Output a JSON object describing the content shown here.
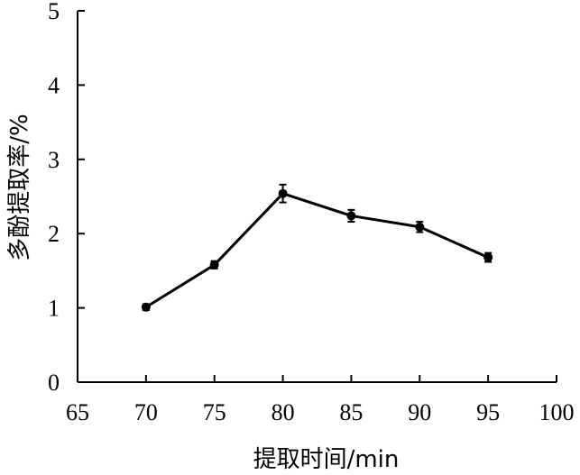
{
  "chart_data": {
    "type": "line",
    "title": "",
    "xlabel": "提取时间/min",
    "ylabel": "多酚提取率/%",
    "xlim": [
      65,
      100
    ],
    "ylim": [
      0,
      5
    ],
    "xticks": [
      "65",
      "70",
      "75",
      "80",
      "85",
      "90",
      "95",
      "100"
    ],
    "yticks": [
      "0",
      "1",
      "2",
      "3",
      "4",
      "5"
    ],
    "grid": false,
    "legend": "none",
    "series": [
      {
        "x": [
          70,
          75,
          80,
          85,
          90,
          95
        ],
        "y": [
          1.01,
          1.58,
          2.54,
          2.24,
          2.09,
          1.68
        ],
        "error": [
          0.04,
          0.05,
          0.12,
          0.08,
          0.07,
          0.06
        ]
      }
    ],
    "colors": {
      "line": "#000000",
      "marker": "#000000"
    }
  }
}
